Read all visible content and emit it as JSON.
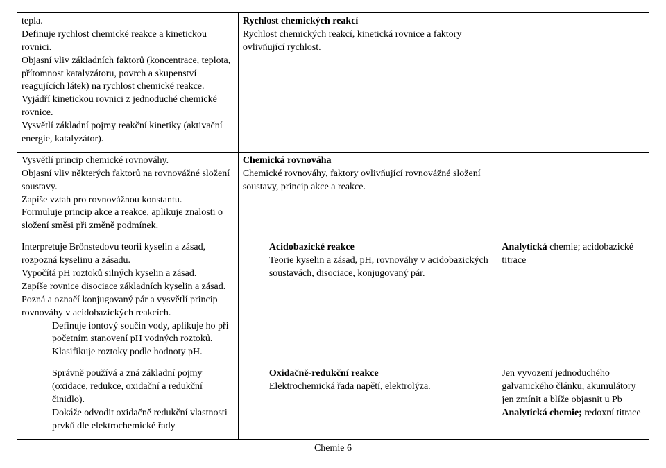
{
  "rows": [
    {
      "col1_parts": [
        "tepla.",
        "Definuje rychlost chemické reakce a kinetickou rovnici.",
        "Objasní vliv základních faktorů (koncentrace, teplota, přítomnost katalyzátoru, povrch a skupenství reagujících látek) na rychlost chemické reakce.",
        "Vyjádří kinetickou rovnici z jednoduché chemické rovnice.",
        "Vysvětlí základní pojmy reakční kinetiky (aktivační energie, katalyzátor)."
      ],
      "col2_title": "Rychlost chemických reakcí",
      "col2_body": "Rychlost chemických reakcí, kinetická rovnice a faktory ovlivňující rychlost.",
      "col3": ""
    },
    {
      "col1_parts": [
        "Vysvětlí princip chemické rovnováhy.",
        "Objasní vliv některých faktorů na rovnovážné složení soustavy.",
        "Zapíše vztah pro rovnovážnou konstantu.",
        "Formuluje princip akce a reakce, aplikuje znalosti o složení směsi při změně podmínek."
      ],
      "col2_title": "Chemická rovnováha",
      "col2_body": "Chemické rovnováhy, faktory ovlivňující rovnovážné složení soustavy, princip akce a reakce.",
      "col3": ""
    },
    {
      "col1_parts": [
        "Interpretuje Brönstedovu teorii kyselin a zásad, rozpozná kyselinu a zásadu.",
        "Vypočítá pH roztoků silných kyselin a zásad.",
        "Zapíše rovnice disociace základních kyselin a zásad.",
        "Pozná a označí konjugovaný pár a vysvětlí princip rovnováhy v acidobazických reakcích."
      ],
      "col1_indent": [
        "Definuje iontový součin vody, aplikuje ho při početním stanovení pH vodných roztoků.",
        "Klasifikuje roztoky podle hodnoty pH."
      ],
      "col2_indent": true,
      "col2_title": "Acidobazické reakce",
      "col2_body": "Teorie kyselin a zásad, pH, rovnováhy v acidobazických soustavách, disociace, konjugovaný pár.",
      "col3_bold1": "Analytická",
      "col3_rest1": "chemie; acidobazické titrace"
    },
    {
      "col1_indent_only": true,
      "col1_indent": [
        "Správně používá a zná základní pojmy (oxidace, redukce, oxidační a redukční činidlo).",
        "Dokáže odvodit oxidačně redukční vlastnosti prvků dle elektrochemické řady"
      ],
      "col2_indent": true,
      "col2_title": "Oxidačně-redukční reakce",
      "col2_body": "Elektrochemická řada napětí, elektrolýza.",
      "col3_plain1": "Jen vyvození jednoduchého galvanického článku, akumulátory jen zmínit a blíže objasnit u Pb",
      "col3_bold2": "Analytická chemie;",
      "col3_rest2": " redoxní titrace"
    }
  ],
  "footer": "Chemie 6"
}
